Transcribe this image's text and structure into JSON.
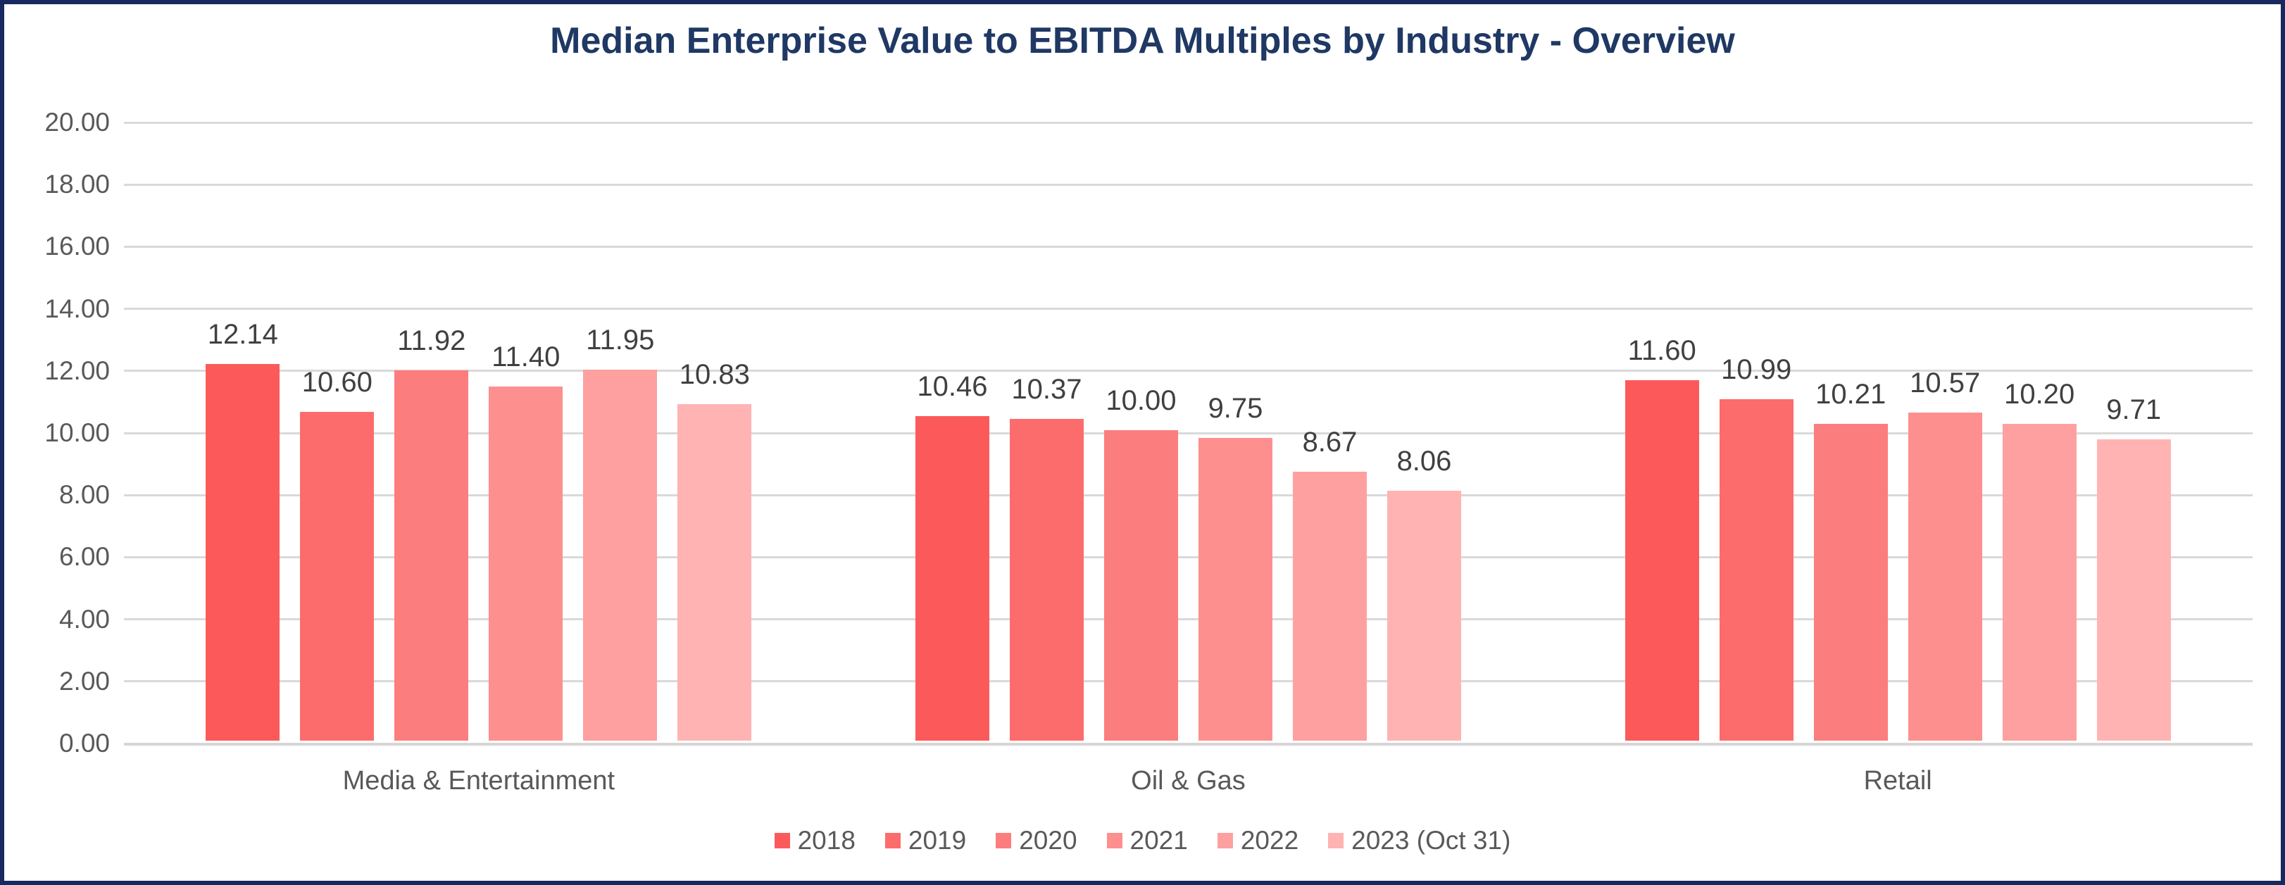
{
  "chart_data": {
    "type": "bar",
    "title": "Median Enterprise Value to EBITDA Multiples by Industry - Overview",
    "categories": [
      "Media & Entertainment",
      "Oil & Gas",
      "Retail"
    ],
    "series": [
      {
        "name": "2018",
        "color": "#FC5A5A",
        "values": [
          12.14,
          10.46,
          11.6
        ]
      },
      {
        "name": "2019",
        "color": "#FC6C6C",
        "values": [
          10.6,
          10.37,
          10.99
        ]
      },
      {
        "name": "2020",
        "color": "#FC7D7D",
        "values": [
          11.92,
          10.0,
          10.21
        ]
      },
      {
        "name": "2021",
        "color": "#FD8F8F",
        "values": [
          11.4,
          9.75,
          10.57
        ]
      },
      {
        "name": "2022",
        "color": "#FEA0A0",
        "values": [
          11.95,
          8.67,
          10.2
        ]
      },
      {
        "name": "2023 (Oct 31)",
        "color": "#FFB3B3",
        "values": [
          10.83,
          8.06,
          9.71
        ]
      }
    ],
    "ylim": [
      0,
      20
    ],
    "ytick_step": 2,
    "ytick_decimals": 2,
    "value_label_decimals": 2,
    "grid": true,
    "legend_position": "bottom",
    "bar_value_labels_shown": true
  },
  "style": {
    "title_color": "#1F3864",
    "border_color": "#17295E",
    "grid_color": "#D9D9D9",
    "axis_text_color": "#595959",
    "value_label_color": "#404040",
    "background": "#FFFFFF"
  }
}
